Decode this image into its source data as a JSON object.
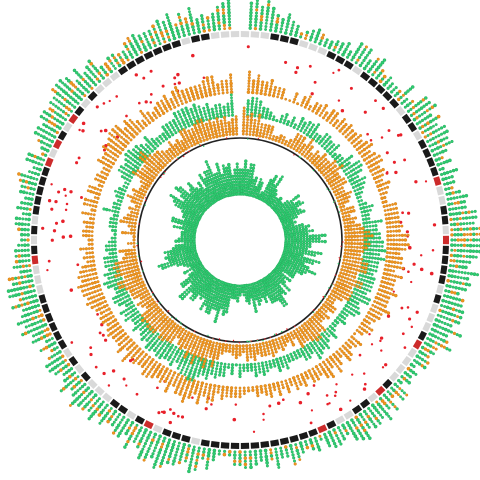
{
  "colors": {
    "green": "#2ecc71",
    "green_stroke": "#1fa456",
    "orange": "#f0961e",
    "orange_stroke": "#c97610",
    "red": "#e8202a",
    "ideogram_dark": "#1a1a1a",
    "ideogram_light": "#d9d9d9",
    "ideogram_band": "#cc2b2b",
    "ring_line": "#222222",
    "background": "#ffffff"
  },
  "diagram": {
    "type": "circular genome plot",
    "tracks": [
      {
        "name": "outer-histogram",
        "style": "stacked dots",
        "color_key": "green",
        "accent_key": "orange"
      },
      {
        "name": "ideogram",
        "style": "segmented band",
        "color_key": "ideogram_dark"
      },
      {
        "name": "scatter-points",
        "style": "dots",
        "color_key": "red"
      },
      {
        "name": "orange-histogram-1",
        "style": "stacked dots",
        "color_key": "orange"
      },
      {
        "name": "green-histogram-1",
        "style": "stacked dots",
        "color_key": "green"
      },
      {
        "name": "orange-histogram-2",
        "style": "stacked dots",
        "color_key": "orange"
      },
      {
        "name": "inner-ring-line",
        "style": "line",
        "color_key": "ring_line"
      },
      {
        "name": "green-histogram-inner",
        "style": "stacked dots",
        "color_key": "green"
      }
    ]
  }
}
